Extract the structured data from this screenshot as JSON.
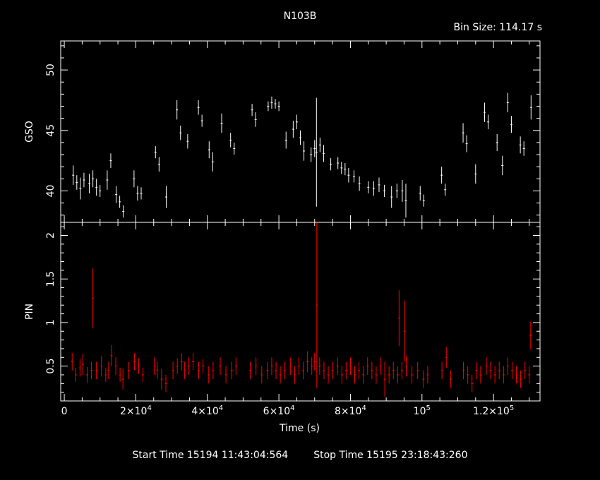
{
  "header": {
    "title": "N103B",
    "bin_size": "Bin Size: 114.17 s"
  },
  "footer": {
    "start_time": "Start Time 15194 11:43:04:564",
    "stop_time": "Stop Time 15195 23:18:43:260"
  },
  "colors": {
    "background": "#000000",
    "gso": "#ffffff",
    "pin": "#ff0000",
    "axes": "#ffffff"
  },
  "chart_data": [
    {
      "type": "scatter",
      "panel": "top",
      "title": "",
      "xlabel": "",
      "ylabel": "GSO",
      "xlim": [
        -1000,
        133000
      ],
      "ylim": [
        37.4,
        52.4
      ],
      "yticks": [
        40,
        45,
        50
      ],
      "yticklabels": [
        "40",
        "45",
        "50"
      ],
      "series": [
        {
          "color": "#ffffff",
          "x": [
            2500,
            3500,
            4500,
            5500,
            7000,
            8000,
            9000,
            10000,
            12000,
            13000,
            14500,
            15500,
            16500,
            19500,
            20500,
            21500,
            25500,
            26500,
            28500,
            31500,
            32500,
            34500,
            37500,
            38500,
            40500,
            41500,
            44000,
            46500,
            47500,
            52500,
            53500,
            57000,
            58000,
            59000,
            60000,
            62000,
            64000,
            65000,
            66000,
            67000,
            69000,
            70000,
            70500,
            71500,
            72500,
            74500,
            76500,
            77500,
            78500,
            79500,
            81000,
            82500,
            85000,
            86500,
            88000,
            89500,
            91500,
            93000,
            94500,
            95500,
            99500,
            100500,
            105500,
            106500,
            111500,
            112500,
            115000,
            117500,
            118500,
            121000,
            122500,
            124000,
            125000,
            127500,
            128500,
            130500
          ],
          "y": [
            41.3,
            40.7,
            40.2,
            40.9,
            40.6,
            41.0,
            40.3,
            40.0,
            40.9,
            42.5,
            39.7,
            39.1,
            38.3,
            41.0,
            39.8,
            39.8,
            43.2,
            42.2,
            39.5,
            46.7,
            44.8,
            44.1,
            46.9,
            45.8,
            43.4,
            42.4,
            45.6,
            44.2,
            43.5,
            46.7,
            45.9,
            47.0,
            47.3,
            47.2,
            47.0,
            44.2,
            45.1,
            45.7,
            44.4,
            43.3,
            43.0,
            43.5,
            43.2,
            43.8,
            43.1,
            42.2,
            42.3,
            41.9,
            41.8,
            41.3,
            41.2,
            40.6,
            40.3,
            40.2,
            40.5,
            40.0,
            39.5,
            40.0,
            40.0,
            39.2,
            39.8,
            39.2,
            41.3,
            40.1,
            44.8,
            43.9,
            41.4,
            46.5,
            45.7,
            44.0,
            42.1,
            47.3,
            45.5,
            43.8,
            43.5,
            46.9
          ],
          "err": [
            0.8,
            0.6,
            0.9,
            0.6,
            0.8,
            0.7,
            0.7,
            0.5,
            0.8,
            0.6,
            0.7,
            0.5,
            0.5,
            0.7,
            0.6,
            0.5,
            0.5,
            0.6,
            0.9,
            0.8,
            0.6,
            0.6,
            0.6,
            0.5,
            0.7,
            0.8,
            0.8,
            0.6,
            0.5,
            0.5,
            0.6,
            0.4,
            0.5,
            0.4,
            0.4,
            0.7,
            0.7,
            0.6,
            0.6,
            0.8,
            0.6,
            0.7,
            4.5,
            0.6,
            0.7,
            0.5,
            0.5,
            0.5,
            0.5,
            0.6,
            0.5,
            0.6,
            0.5,
            0.6,
            0.6,
            0.5,
            0.9,
            0.6,
            0.9,
            1.4,
            0.6,
            0.5,
            0.7,
            0.5,
            0.8,
            0.7,
            0.8,
            0.8,
            0.6,
            0.7,
            0.8,
            0.8,
            0.7,
            0.7,
            0.6,
            1.0
          ]
        }
      ]
    },
    {
      "type": "scatter",
      "panel": "bottom",
      "title": "",
      "xlabel": "Time (s)",
      "ylabel": "PIN",
      "xlim": [
        -1000,
        133000
      ],
      "ylim": [
        0.1,
        2.15
      ],
      "xticks": [
        0,
        20000,
        40000,
        60000,
        80000,
        100000,
        120000
      ],
      "xticklabels": [
        {
          "base": "0",
          "exp": ""
        },
        {
          "base": "2×10",
          "exp": "4"
        },
        {
          "base": "4×10",
          "exp": "4"
        },
        {
          "base": "6×10",
          "exp": "4"
        },
        {
          "base": "8×10",
          "exp": "4"
        },
        {
          "base": "10",
          "exp": "5"
        },
        {
          "base": "1.2×10",
          "exp": "5"
        }
      ],
      "yticks": [
        0.5,
        1,
        1.5,
        2
      ],
      "yticklabels": [
        "0.5",
        "1",
        "1.5",
        "2"
      ],
      "series": [
        {
          "color": "#ff0000",
          "x": [
            2200,
            3200,
            4400,
            5200,
            6400,
            7600,
            8000,
            9000,
            10400,
            11600,
            12400,
            13200,
            14400,
            15600,
            16400,
            18000,
            19600,
            20800,
            22000,
            25200,
            26000,
            27200,
            28400,
            30400,
            31600,
            32800,
            33600,
            34800,
            36000,
            37600,
            38800,
            40400,
            41600,
            43600,
            45200,
            46800,
            48000,
            52000,
            53600,
            55200,
            56800,
            58000,
            59200,
            60400,
            61600,
            63200,
            64400,
            65600,
            66800,
            68000,
            69200,
            70000,
            70600,
            71400,
            72600,
            73800,
            75000,
            76400,
            77600,
            78800,
            80000,
            81200,
            82400,
            83600,
            84800,
            86000,
            87200,
            88400,
            89600,
            90800,
            92000,
            93200,
            93600,
            94400,
            95200,
            95600,
            97200,
            98800,
            100400,
            101600,
            105600,
            106800,
            108000,
            111600,
            112800,
            114000,
            115200,
            116400,
            118000,
            119200,
            120400,
            121600,
            122800,
            124000,
            125200,
            126400,
            127600,
            128800,
            130000,
            130400
          ],
          "y": [
            0.55,
            0.4,
            0.48,
            0.52,
            0.4,
            0.45,
            1.28,
            0.45,
            0.5,
            0.4,
            0.45,
            0.62,
            0.5,
            0.4,
            0.35,
            0.45,
            0.55,
            0.5,
            0.4,
            0.5,
            0.45,
            0.35,
            0.3,
            0.45,
            0.5,
            0.55,
            0.45,
            0.5,
            0.55,
            0.45,
            0.5,
            0.4,
            0.45,
            0.5,
            0.4,
            0.45,
            0.5,
            0.45,
            0.5,
            0.4,
            0.45,
            0.5,
            0.45,
            0.4,
            0.45,
            0.5,
            0.4,
            0.5,
            0.45,
            0.55,
            0.5,
            0.55,
            1.2,
            0.5,
            0.45,
            0.4,
            0.45,
            0.5,
            0.4,
            0.45,
            0.5,
            0.4,
            0.45,
            0.4,
            0.5,
            0.45,
            0.4,
            0.5,
            0.35,
            0.4,
            0.45,
            0.4,
            1.05,
            0.45,
            0.9,
            0.5,
            0.4,
            0.45,
            0.35,
            0.4,
            0.45,
            0.6,
            0.35,
            0.45,
            0.4,
            0.3,
            0.45,
            0.4,
            0.5,
            0.45,
            0.4,
            0.45,
            0.4,
            0.5,
            0.45,
            0.4,
            0.35,
            0.45,
            0.4,
            0.85
          ],
          "err": [
            0.1,
            0.08,
            0.1,
            0.12,
            0.09,
            0.1,
            0.34,
            0.1,
            0.12,
            0.08,
            0.1,
            0.12,
            0.1,
            0.08,
            0.12,
            0.1,
            0.1,
            0.09,
            0.08,
            0.1,
            0.1,
            0.12,
            0.1,
            0.1,
            0.09,
            0.1,
            0.1,
            0.1,
            0.1,
            0.1,
            0.08,
            0.1,
            0.1,
            0.1,
            0.1,
            0.1,
            0.1,
            0.1,
            0.1,
            0.1,
            0.1,
            0.1,
            0.1,
            0.1,
            0.1,
            0.1,
            0.1,
            0.1,
            0.1,
            0.12,
            0.1,
            0.1,
            0.95,
            0.1,
            0.1,
            0.1,
            0.1,
            0.1,
            0.1,
            0.1,
            0.1,
            0.1,
            0.1,
            0.1,
            0.1,
            0.1,
            0.1,
            0.1,
            0.2,
            0.1,
            0.1,
            0.1,
            0.32,
            0.1,
            0.35,
            0.12,
            0.1,
            0.1,
            0.1,
            0.1,
            0.1,
            0.12,
            0.1,
            0.1,
            0.1,
            0.1,
            0.1,
            0.1,
            0.1,
            0.1,
            0.1,
            0.1,
            0.1,
            0.1,
            0.1,
            0.1,
            0.1,
            0.1,
            0.1,
            0.16
          ]
        }
      ]
    }
  ]
}
